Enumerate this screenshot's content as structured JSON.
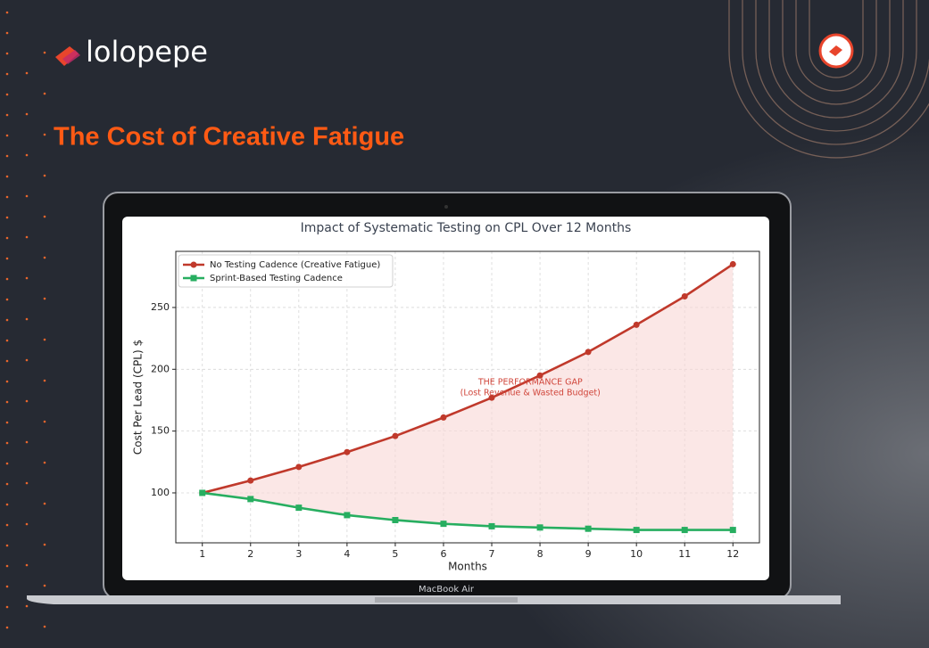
{
  "brand": "lolopepe",
  "heading": "The Cost of Creative Fatigue",
  "device_label": "MacBook Air",
  "chart_data": {
    "type": "line",
    "title": "Impact of Systematic Testing on CPL Over 12 Months",
    "x_label": "Months",
    "y_label": "Cost Per Lead (CPL) $",
    "x": [
      1,
      2,
      3,
      4,
      5,
      6,
      7,
      8,
      9,
      10,
      11,
      12
    ],
    "xlim": [
      0.45,
      12.55
    ],
    "xticks": [
      1,
      2,
      3,
      4,
      5,
      6,
      7,
      8,
      9,
      10,
      11,
      12
    ],
    "ylim": [
      59.6,
      295.4
    ],
    "yticks": [
      100,
      150,
      200,
      250
    ],
    "grid": true,
    "legend": "upper left",
    "series": [
      {
        "name": "No Testing Cadence (Creative Fatigue)",
        "color": "#c0392b",
        "marker": "circle",
        "values": [
          100,
          110,
          121,
          133,
          146,
          161,
          177,
          195,
          214,
          236,
          259,
          285
        ]
      },
      {
        "name": "Sprint-Based Testing Cadence",
        "color": "#27ae60",
        "marker": "square",
        "values": [
          100,
          95,
          88,
          82,
          78,
          75,
          73,
          72,
          71,
          70,
          70,
          70
        ]
      }
    ],
    "fill_between": {
      "color": "#f8d7d5"
    },
    "annotation": {
      "lines": [
        "THE PERFORMANCE GAP",
        "(Lost Revenue & Wasted Budget)"
      ],
      "x": 7.8,
      "y": 185,
      "color": "#d0453a"
    }
  }
}
